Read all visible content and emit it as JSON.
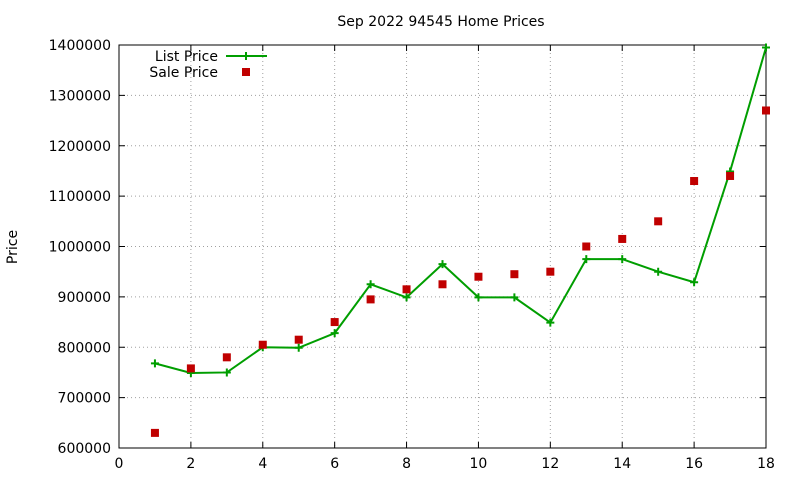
{
  "chart_data": {
    "type": "line",
    "title": "Sep 2022 94545 Home Prices",
    "xlabel": "",
    "ylabel": "Price",
    "xlim": [
      0,
      18
    ],
    "ylim": [
      600000,
      1400000
    ],
    "xticks": [
      0,
      2,
      4,
      6,
      8,
      10,
      12,
      14,
      16,
      18
    ],
    "yticks": [
      600000,
      700000,
      800000,
      900000,
      1000000,
      1100000,
      1200000,
      1300000,
      1400000
    ],
    "grid": true,
    "legend_position": "top-left",
    "series": [
      {
        "name": "List Price",
        "style": "line+cross",
        "color": "#009e00",
        "x": [
          1,
          2,
          3,
          4,
          5,
          6,
          7,
          8,
          9,
          10,
          11,
          12,
          13,
          14,
          15,
          16,
          17,
          18
        ],
        "y": [
          768000,
          749000,
          750000,
          800000,
          799000,
          828000,
          925000,
          899000,
          965000,
          899000,
          899000,
          849000,
          975000,
          975000,
          950000,
          929000,
          1149000,
          1395000
        ]
      },
      {
        "name": "Sale Price",
        "style": "square",
        "color": "#c00000",
        "x": [
          1,
          2,
          3,
          4,
          5,
          6,
          7,
          8,
          9,
          10,
          11,
          12,
          13,
          14,
          15,
          16,
          17,
          18
        ],
        "y": [
          630000,
          758000,
          780000,
          805000,
          815000,
          850000,
          895000,
          915000,
          925000,
          940000,
          945000,
          950000,
          1000000,
          1015000,
          1050000,
          1130000,
          1140000,
          1270000
        ]
      }
    ]
  }
}
